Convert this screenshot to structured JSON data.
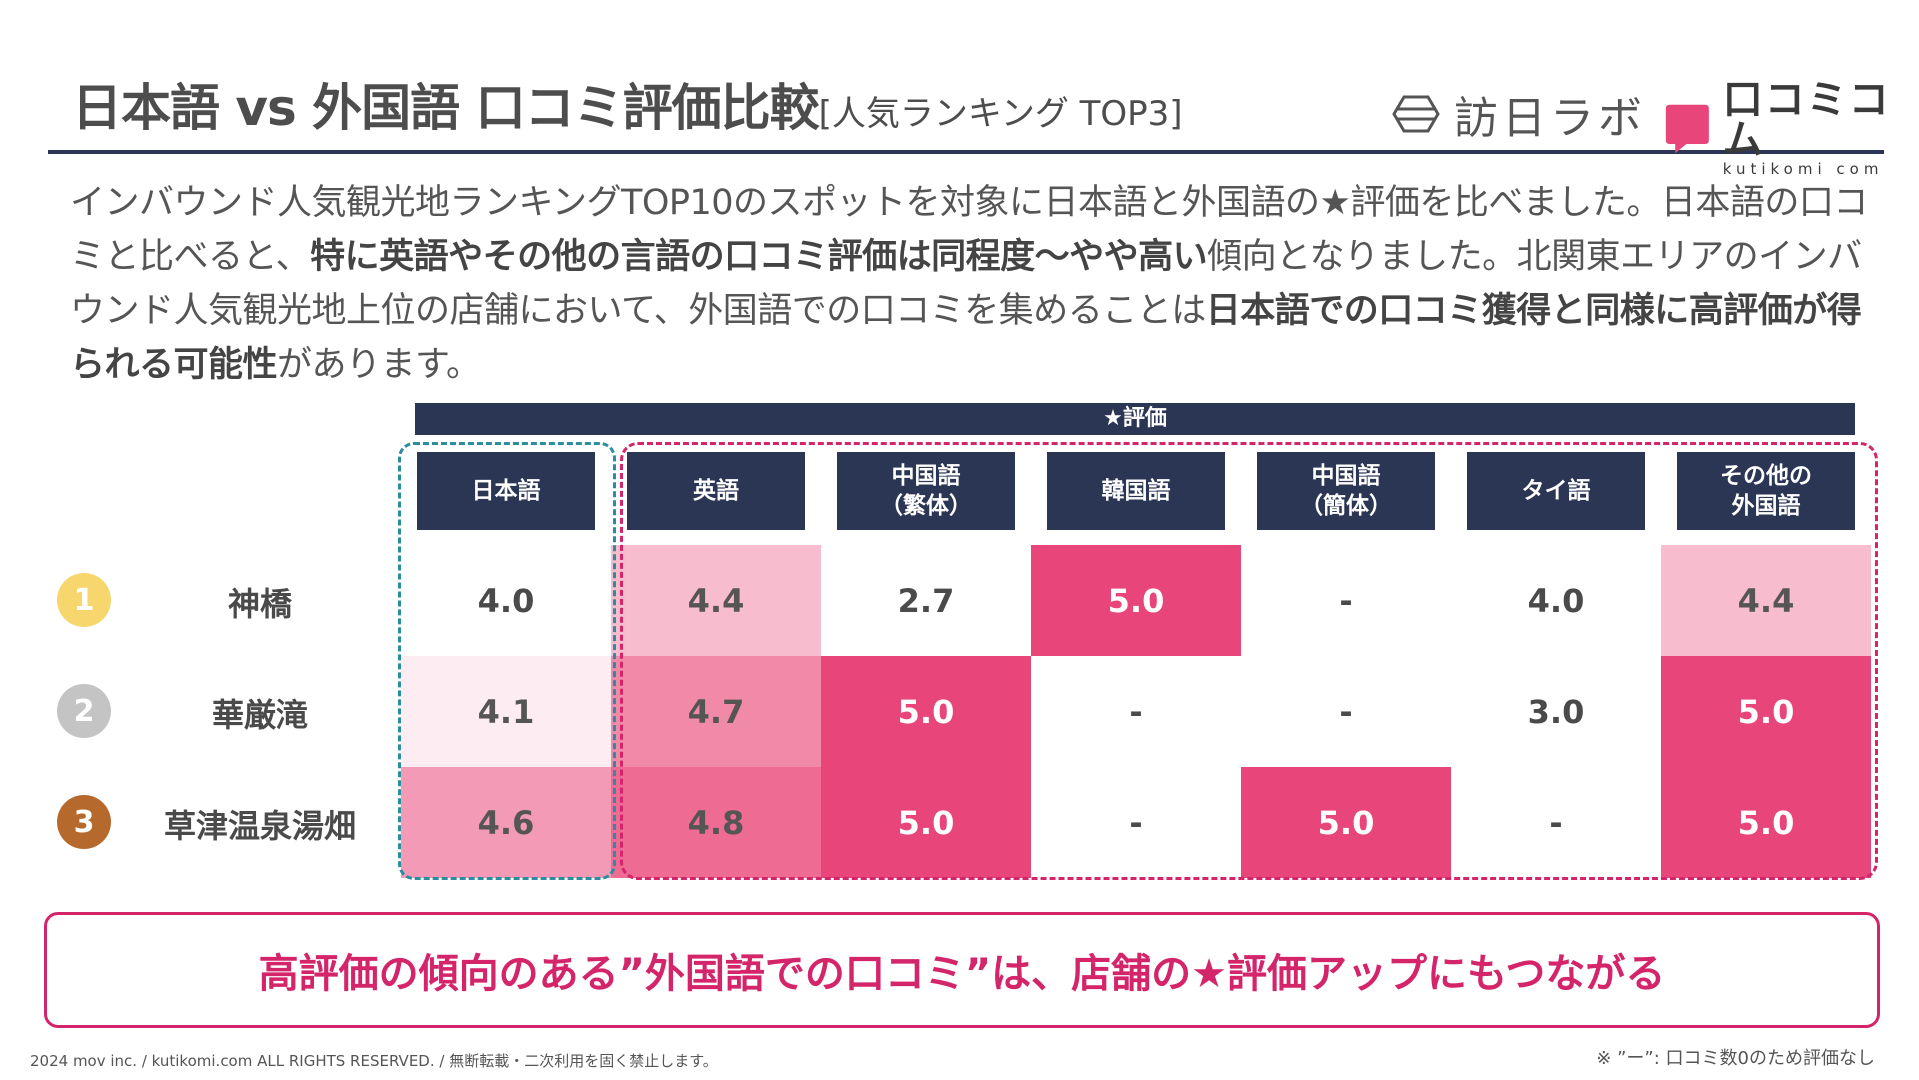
{
  "header": {
    "title": "日本語 vs 外国語 口コミ評価比較",
    "subtitle": "[人気ランキング TOP3]"
  },
  "logos": {
    "brand1": "訪日ラボ",
    "brand2_name": "口コミコム",
    "brand2_sub": "kutikomi com"
  },
  "intro": {
    "p1": "インバウンド人気観光地ランキングTOP10のスポットを対象に日本語と外国語の★評価を比べました。日本語の口コミと比べると、",
    "b1": "特に英語やその他の言語の口コミ評価は同程度～やや高い",
    "p2": "傾向となりました。北関東エリアのインバウンド人気観光地上位の店舗において、外国語での口コミを集めることは",
    "b2": "日本語での口コミ獲得と同様に高評価が得られる可能性",
    "p3": "があります。"
  },
  "table": {
    "group_label": "★評価",
    "columns": [
      "日本語",
      "英語",
      "中国語\n（繁体）",
      "韓国語",
      "中国語\n（簡体）",
      "タイ語",
      "その他の\n外国語"
    ],
    "rows": [
      {
        "rank": "1",
        "name": "神橋",
        "values": [
          "4.0",
          "4.4",
          "2.7",
          "5.0",
          "-",
          "4.0",
          "4.4"
        ]
      },
      {
        "rank": "2",
        "name": "華厳滝",
        "values": [
          "4.1",
          "4.7",
          "5.0",
          "-",
          "-",
          "3.0",
          "5.0"
        ]
      },
      {
        "rank": "3",
        "name": "草津温泉湯畑",
        "values": [
          "4.6",
          "4.8",
          "5.0",
          "-",
          "5.0",
          "-",
          "5.0"
        ]
      }
    ]
  },
  "colors": {
    "navy": "#2b3654",
    "accent_pink": "#d4246a",
    "teal": "#2a8e9e",
    "rank_gold": "#f7d66e",
    "rank_silver": "#c4c4c4",
    "rank_bronze": "#b5692c"
  },
  "conclusion": "高評価の傾向のある”外国語での口コミ”は、店舗の★評価アップにもつながる",
  "footer": {
    "copyright": "2024 mov inc. / kutikomi.com ALL RIGHTS RESERVED. / 無断転載・二次利用を固く禁止します。",
    "note": "※ ”ー”: 口コミ数0のため評価なし"
  }
}
